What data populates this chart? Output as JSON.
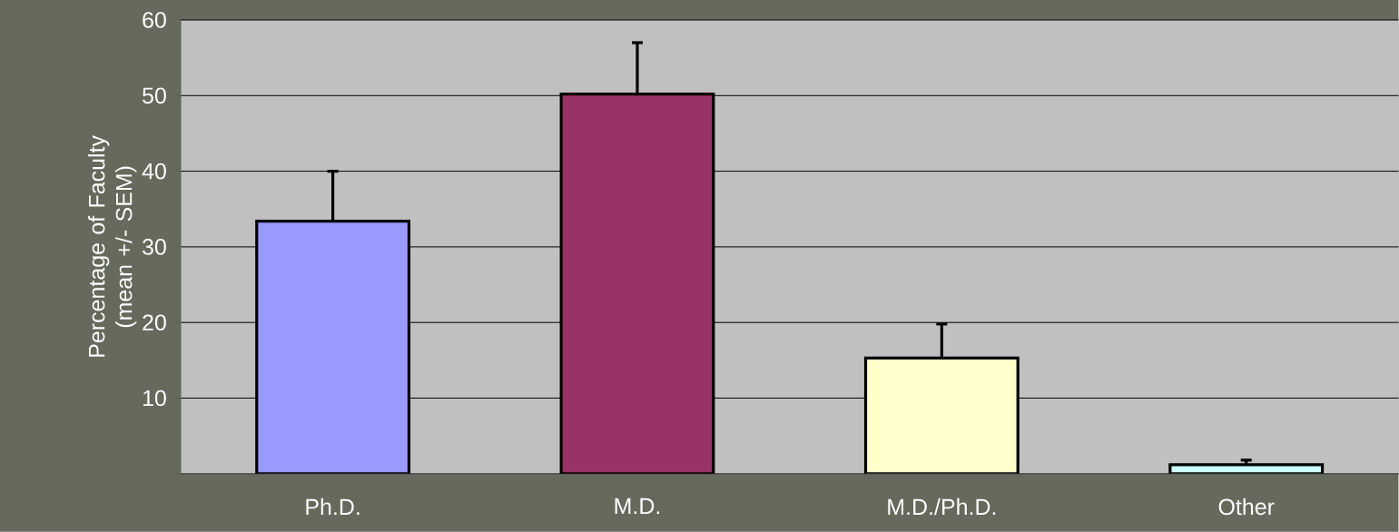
{
  "chart_data": {
    "type": "bar",
    "ylabel": "Percentage of Faculty (mean +/- SEM)",
    "categories": [
      "Ph.D.",
      "M.D.",
      "M.D./Ph.D.",
      "Other"
    ],
    "values": [
      33.4,
      50.2,
      15.3,
      1.2
    ],
    "errors": [
      [
        33.4,
        40.0
      ],
      [
        50.2,
        57.0
      ],
      [
        15.3,
        19.8
      ],
      [
        1.2,
        1.8
      ]
    ],
    "colors": [
      "#9999ff",
      "#993366",
      "#ffffcc",
      "#ccffff"
    ],
    "ylim": [
      0,
      60
    ],
    "yticks": [
      {
        "value": 0,
        "label": null
      },
      10,
      20,
      30,
      40,
      50,
      60
    ],
    "grid": "y"
  }
}
